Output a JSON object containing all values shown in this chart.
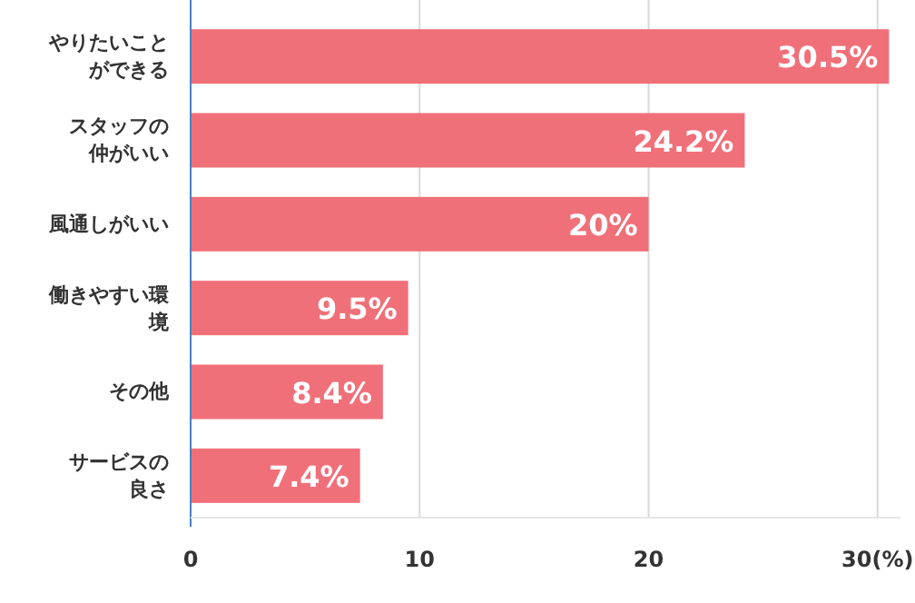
{
  "chart_data": {
    "type": "bar",
    "orientation": "horizontal",
    "categories": [
      "やりたいことができる",
      "スタッフの仲がいい",
      "風通しがいい",
      "働きやすい環境",
      "その他",
      "サービスの良さ"
    ],
    "values": [
      30.5,
      24.2,
      20,
      9.5,
      8.4,
      7.4
    ],
    "value_labels": [
      "30.5%",
      "24.2%",
      "20%",
      "9.5%",
      "8.4%",
      "7.4%"
    ],
    "color": "#f0707a",
    "xlim": [
      0,
      31
    ],
    "xticks": [
      0,
      10,
      20,
      {
        "value": 30,
        "label": "30(%)"
      }
    ],
    "grid": "x"
  }
}
